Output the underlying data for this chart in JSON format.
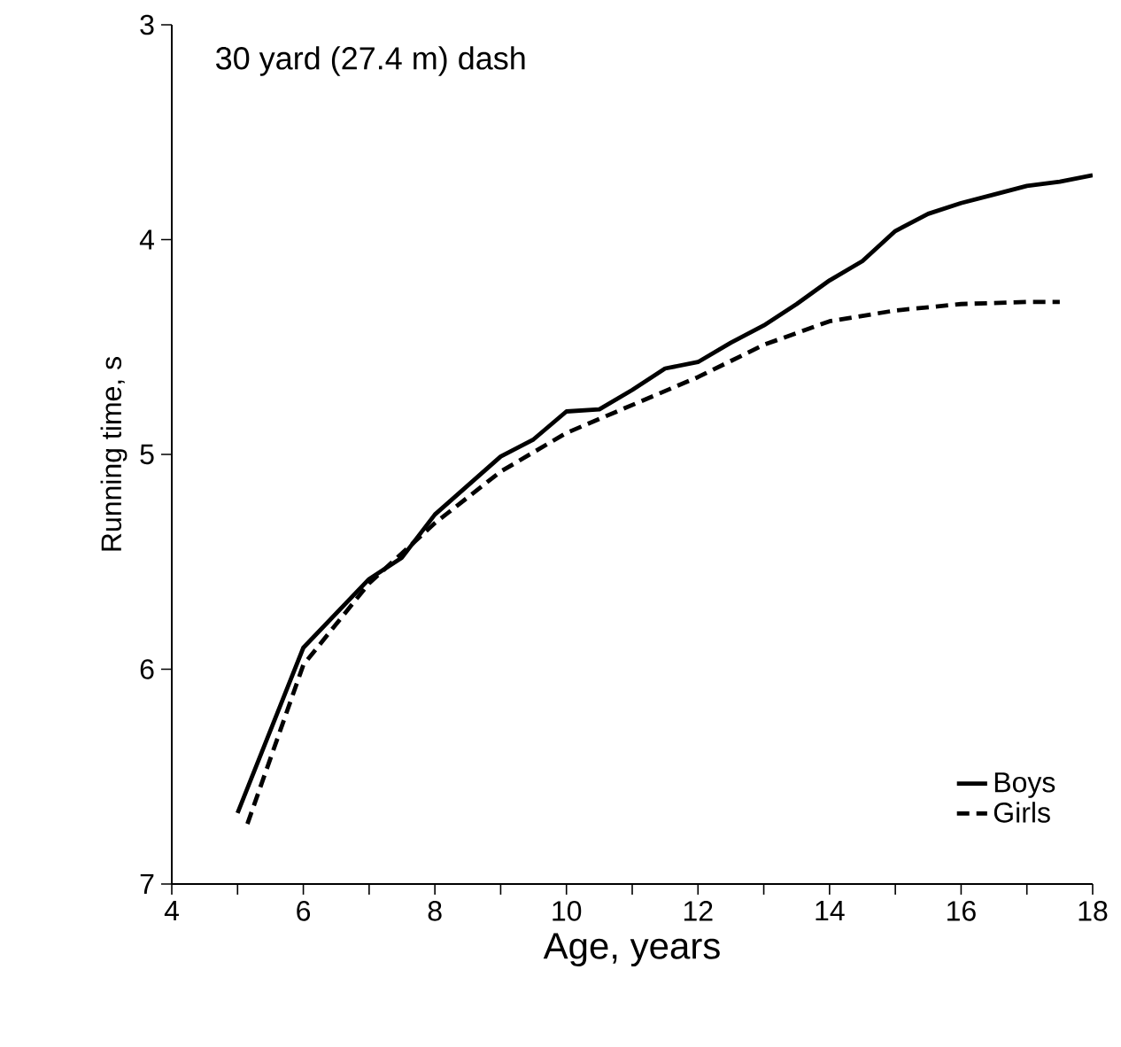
{
  "chart_data": {
    "type": "line",
    "title": "30 yard (27.4 m) dash",
    "xlabel": "Age, years",
    "ylabel": "Running time, s",
    "xlim": [
      4,
      18
    ],
    "ylim": [
      7,
      3
    ],
    "xticks": [
      4,
      {
        "value": 5,
        "label": null
      },
      6,
      {
        "value": 7,
        "label": null
      },
      8,
      {
        "value": 9,
        "label": null
      },
      10,
      {
        "value": 11,
        "label": null
      },
      12,
      {
        "value": 13,
        "label": null
      },
      14,
      {
        "value": 15,
        "label": null
      },
      16,
      {
        "value": 17,
        "label": null
      },
      18
    ],
    "yticks": [
      3,
      4,
      5,
      6,
      7
    ],
    "legend": "bottom right",
    "grid": false,
    "marker": "none",
    "series": [
      {
        "name": "Boys",
        "color": "#000000",
        "line_style": "solid",
        "x": [
          5,
          6,
          7,
          7.5,
          8,
          9,
          9.5,
          10,
          10.5,
          11,
          11.5,
          12,
          12.5,
          13,
          13.5,
          14,
          14.5,
          15,
          15.5,
          16,
          16.5,
          17,
          17.5,
          18
        ],
        "values": [
          6.67,
          5.9,
          5.58,
          5.48,
          5.28,
          5.01,
          4.93,
          4.8,
          4.79,
          4.7,
          4.6,
          4.57,
          4.48,
          4.4,
          4.3,
          4.19,
          4.1,
          3.96,
          3.88,
          3.83,
          3.79,
          3.75,
          3.73,
          3.7
        ]
      },
      {
        "name": "Girls",
        "color": "#000000",
        "line_style": "dashed",
        "x": [
          5.15,
          6,
          7,
          8,
          9,
          10,
          11,
          12,
          13,
          14,
          15,
          16,
          17,
          17.5
        ],
        "values": [
          6.72,
          5.98,
          5.6,
          5.32,
          5.08,
          4.9,
          4.77,
          4.64,
          4.49,
          4.38,
          4.33,
          4.3,
          4.29,
          4.29
        ]
      }
    ]
  }
}
